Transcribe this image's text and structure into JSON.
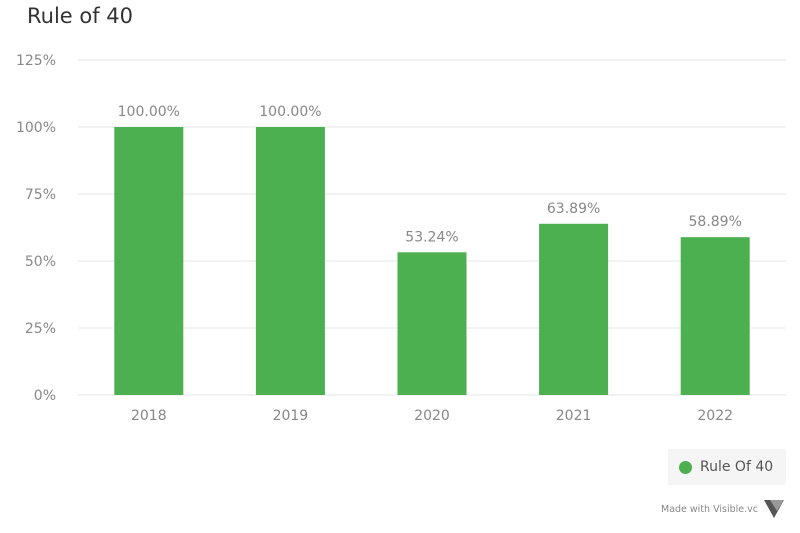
{
  "chart_data": {
    "type": "bar",
    "title": "Rule of 40",
    "categories": [
      "2018",
      "2019",
      "2020",
      "2021",
      "2022"
    ],
    "series": [
      {
        "name": "Rule Of 40",
        "color": "#4caf50",
        "values": [
          100.0,
          100.0,
          53.24,
          63.89,
          58.89
        ],
        "labels": [
          "100.00%",
          "100.00%",
          "53.24%",
          "63.89%",
          "58.89%"
        ]
      }
    ],
    "ylim": [
      0,
      125
    ],
    "yticks": [
      0,
      25,
      50,
      75,
      100,
      125
    ],
    "ytick_labels": [
      "0%",
      "25%",
      "50%",
      "75%",
      "100%",
      "125%"
    ],
    "grid": true,
    "legend_position": "bottom-right"
  },
  "footer": {
    "text": "Made with Visible.vc",
    "logo_icon": "visible-logo-icon"
  },
  "colors": {
    "bar": "#4caf50",
    "grid": "#e6e6e6",
    "tick_text": "#888888",
    "label_text": "#888888"
  }
}
